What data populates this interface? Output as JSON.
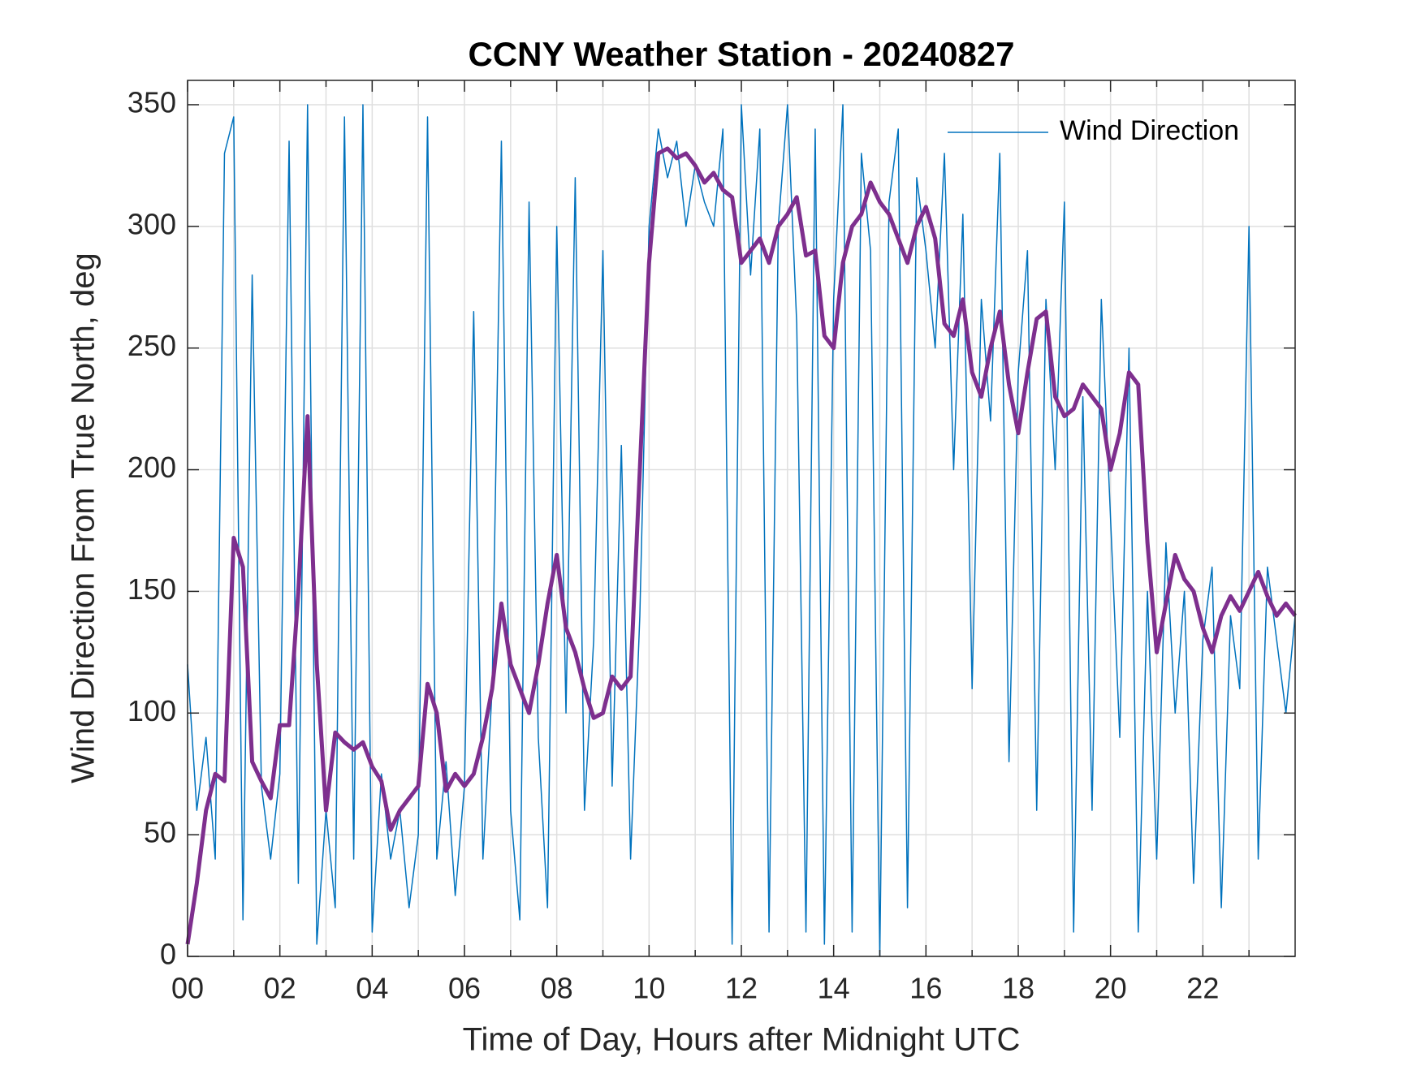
{
  "chart_data": {
    "type": "line",
    "title": "CCNY Weather Station - 20240827",
    "xlabel": "Time of Day, Hours after Midnight UTC",
    "ylabel": "Wind Direction From True North, deg",
    "x": [
      0,
      0.2,
      0.4,
      0.6,
      0.8,
      1,
      1.2,
      1.4,
      1.6,
      1.8,
      2,
      2.2,
      2.4,
      2.6,
      2.8,
      3,
      3.2,
      3.4,
      3.6,
      3.8,
      4,
      4.2,
      4.4,
      4.6,
      4.8,
      5,
      5.2,
      5.4,
      5.6,
      5.8,
      6,
      6.2,
      6.4,
      6.6,
      6.8,
      7,
      7.2,
      7.4,
      7.6,
      7.8,
      8,
      8.2,
      8.4,
      8.6,
      8.8,
      9,
      9.2,
      9.4,
      9.6,
      9.8,
      10,
      10.2,
      10.4,
      10.6,
      10.8,
      11,
      11.2,
      11.4,
      11.6,
      11.8,
      12,
      12.2,
      12.4,
      12.6,
      12.8,
      13,
      13.2,
      13.4,
      13.6,
      13.8,
      14,
      14.2,
      14.4,
      14.6,
      14.8,
      15,
      15.2,
      15.4,
      15.6,
      15.8,
      16,
      16.2,
      16.4,
      16.6,
      16.8,
      17,
      17.2,
      17.4,
      17.6,
      17.8,
      18,
      18.2,
      18.4,
      18.6,
      18.8,
      19,
      19.2,
      19.4,
      19.6,
      19.8,
      20,
      20.2,
      20.4,
      20.6,
      20.8,
      21,
      21.2,
      21.4,
      21.6,
      21.8,
      22,
      22.2,
      22.4,
      22.6,
      22.8,
      23,
      23.2,
      23.4,
      23.6,
      23.8,
      24
    ],
    "series": [
      {
        "name": "Wind Direction",
        "color": "#0072bd",
        "width": 1.5,
        "values": [
          120,
          60,
          90,
          40,
          330,
          345,
          15,
          280,
          70,
          40,
          75,
          335,
          30,
          350,
          5,
          60,
          20,
          345,
          40,
          350,
          10,
          75,
          40,
          60,
          20,
          50,
          345,
          40,
          80,
          25,
          70,
          265,
          40,
          110,
          335,
          60,
          15,
          310,
          90,
          20,
          300,
          100,
          320,
          60,
          130,
          290,
          70,
          210,
          40,
          140,
          300,
          340,
          320,
          335,
          300,
          325,
          310,
          300,
          340,
          5,
          350,
          280,
          340,
          10,
          300,
          350,
          260,
          10,
          340,
          5,
          270,
          350,
          10,
          330,
          290,
          0,
          310,
          340,
          20,
          320,
          290,
          250,
          330,
          200,
          305,
          110,
          270,
          220,
          330,
          80,
          240,
          290,
          60,
          270,
          200,
          310,
          10,
          230,
          60,
          270,
          180,
          90,
          250,
          10,
          150,
          40,
          170,
          100,
          150,
          30,
          130,
          160,
          20,
          140,
          110,
          300,
          40,
          160,
          130,
          100,
          140
        ]
      },
      {
        "color": "#7e2f8e",
        "width": 5,
        "values": [
          5,
          30,
          60,
          75,
          72,
          172,
          160,
          80,
          72,
          65,
          95,
          95,
          150,
          222,
          120,
          60,
          92,
          88,
          85,
          88,
          78,
          72,
          52,
          60,
          65,
          70,
          112,
          100,
          68,
          75,
          70,
          75,
          90,
          110,
          145,
          120,
          110,
          100,
          120,
          145,
          165,
          135,
          125,
          110,
          98,
          100,
          115,
          110,
          115,
          200,
          285,
          330,
          332,
          328,
          330,
          325,
          318,
          322,
          315,
          312,
          285,
          290,
          295,
          285,
          300,
          305,
          312,
          288,
          290,
          255,
          250,
          285,
          300,
          305,
          318,
          310,
          305,
          295,
          285,
          300,
          308,
          295,
          260,
          255,
          270,
          240,
          230,
          250,
          265,
          235,
          215,
          240,
          262,
          265,
          230,
          222,
          225,
          235,
          230,
          225,
          200,
          215,
          240,
          235,
          170,
          125,
          145,
          165,
          155,
          150,
          135,
          125,
          140,
          148,
          142,
          150,
          158,
          148,
          140,
          145,
          140
        ]
      }
    ],
    "xlim": [
      0,
      24
    ],
    "xticks": [
      {
        "value": 0,
        "label": "00"
      },
      {
        "value": 2,
        "label": "02"
      },
      {
        "value": 4,
        "label": "04"
      },
      {
        "value": 6,
        "label": "06"
      },
      {
        "value": 8,
        "label": "08"
      },
      {
        "value": 10,
        "label": "10"
      },
      {
        "value": 12,
        "label": "12"
      },
      {
        "value": 14,
        "label": "14"
      },
      {
        "value": 16,
        "label": "16"
      },
      {
        "value": 18,
        "label": "18"
      },
      {
        "value": 20,
        "label": "20"
      },
      {
        "value": 22,
        "label": "22"
      }
    ],
    "xminorticks": [
      1,
      3,
      5,
      7,
      9,
      11,
      13,
      15,
      17,
      19,
      21,
      23
    ],
    "ylim": [
      0,
      360
    ],
    "yticks": [
      0,
      50,
      100,
      150,
      200,
      250,
      300,
      350
    ],
    "grid": true,
    "legend": "upper right"
  }
}
